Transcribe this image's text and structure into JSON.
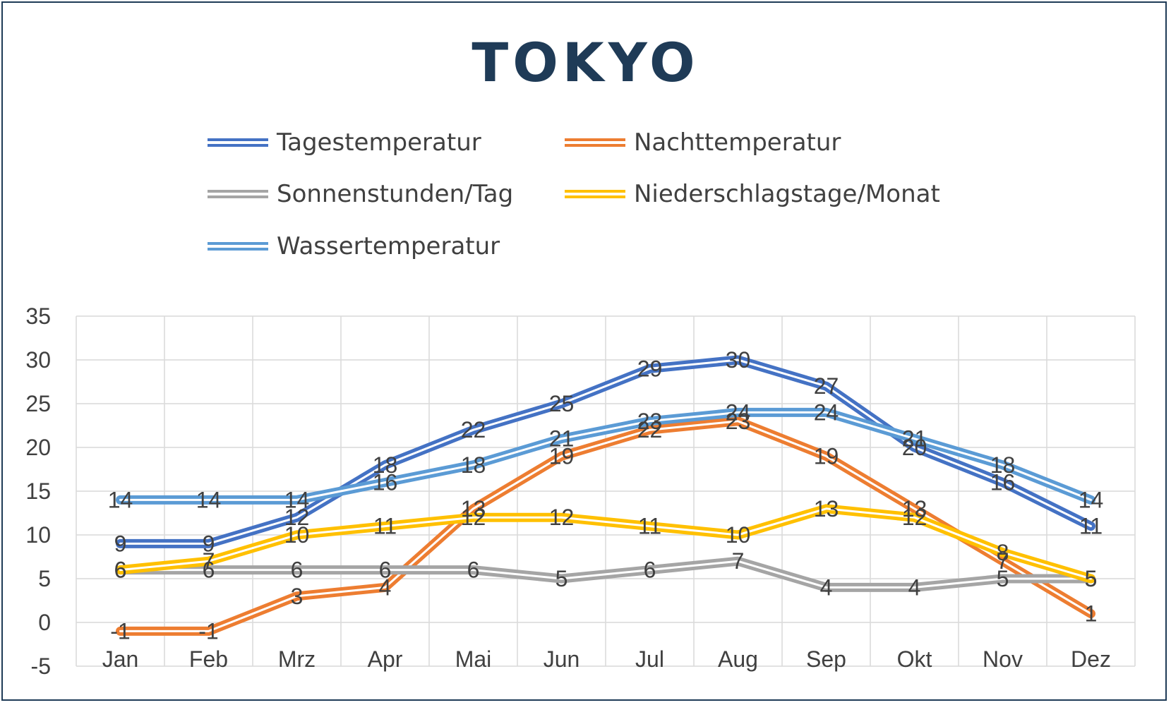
{
  "chart_data": {
    "type": "line",
    "title": "TOKYO",
    "categories": [
      "Jan",
      "Feb",
      "Mrz",
      "Apr",
      "Mai",
      "Jun",
      "Jul",
      "Aug",
      "Sep",
      "Okt",
      "Nov",
      "Dez"
    ],
    "ylim": [
      -5,
      35
    ],
    "yticks": [
      -5,
      0,
      5,
      10,
      15,
      20,
      25,
      30,
      35
    ],
    "grid": true,
    "legend_position": "top",
    "series": [
      {
        "name": "Tagestemperatur",
        "color": "#4472c4",
        "values": [
          9,
          9,
          12,
          18,
          22,
          25,
          29,
          30,
          27,
          20,
          16,
          11
        ]
      },
      {
        "name": "Nachttemperatur",
        "color": "#ed7d31",
        "values": [
          -1,
          -1,
          3,
          4,
          13,
          19,
          22,
          23,
          19,
          13,
          7,
          1
        ]
      },
      {
        "name": "Sonnenstunden/Tag",
        "color": "#a5a5a5",
        "values": [
          6,
          6,
          6,
          6,
          6,
          5,
          6,
          7,
          4,
          4,
          5,
          5
        ]
      },
      {
        "name": "Niederschlagstage/Monat",
        "color": "#ffc000",
        "values": [
          6,
          7,
          10,
          11,
          12,
          12,
          11,
          10,
          13,
          12,
          8,
          5
        ]
      },
      {
        "name": "Wassertemperatur",
        "color": "#5b9bd5",
        "values": [
          14,
          14,
          14,
          16,
          18,
          21,
          23,
          24,
          24,
          21,
          18,
          14
        ]
      }
    ]
  }
}
